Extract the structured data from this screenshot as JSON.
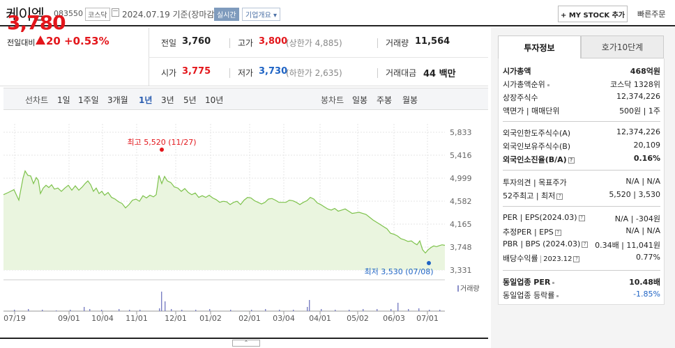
{
  "header": {
    "stock_name": "케이엠",
    "stock_code": "083550",
    "market": "코스닥",
    "date": "2024.07.19 기준(장마감)",
    "realtime": "실시간",
    "overview": "기업개요",
    "my_stock": "+ MY STOCK 추가",
    "quick_order": "빠른주문"
  },
  "price": {
    "current": "3,780",
    "vs_label": "전일대비",
    "change": "20",
    "change_pct": "+0.53%",
    "prev_label": "전일",
    "prev": "3,760",
    "high_label": "고가",
    "high": "3,800",
    "upper_limit": "(상한가 4,885)",
    "volume_label": "거래량",
    "volume": "11,564",
    "open_label": "시가",
    "open": "3,775",
    "low_label": "저가",
    "low": "3,730",
    "lower_limit": "(하한가 2,635)",
    "value_label": "거래대금",
    "value": "44 백만"
  },
  "periods": {
    "line_label": "선차트",
    "items": [
      "1일",
      "1주일",
      "3개월",
      "1년",
      "3년",
      "5년",
      "10년"
    ],
    "active": "1년",
    "candle_label": "봉차트",
    "candle_items": [
      "일봉",
      "주봉",
      "월봉"
    ]
  },
  "right_panel": {
    "tab_invest": "투자정보",
    "tab_hoga": "호가10단계",
    "rows": {
      "mktcap": [
        "시가총액",
        "468억원"
      ],
      "mktcap_rank": [
        "시가총액순위",
        "코스닥 1328위"
      ],
      "shares": [
        "상장주식수",
        "12,374,226"
      ],
      "face": [
        "액면가 | 매매단위",
        "500원 | 1주"
      ],
      "foreign_limit": [
        "외국인한도주식수(A)",
        "12,374,226"
      ],
      "foreign_hold": [
        "외국인보유주식수(B)",
        "20,109"
      ],
      "foreign_ratio": [
        "외국인소진율(B/A)",
        "0.16%"
      ],
      "opinion": [
        "투자의견 | 목표주가",
        "N/A | N/A"
      ],
      "week52": [
        "52주최고 | 최저",
        "5,520 | 3,530"
      ],
      "per_eps": [
        "PER | EPS(2024.03)",
        "N/A | -304원"
      ],
      "est_per": [
        "추정PER | EPS",
        "N/A | N/A"
      ],
      "pbr_bps": [
        "PBR | BPS (2024.03)",
        "0.34배 | 11,041원"
      ],
      "dividend_label": "배당수익률",
      "dividend_date": "2023.12",
      "dividend": "0.77%",
      "industry_per": [
        "동일업종 PER",
        "10.48배"
      ],
      "industry_rate": [
        "동일업종 등락률",
        "-1.85%"
      ]
    }
  },
  "chart_data": {
    "type": "area",
    "y_ticks": [
      "5,833",
      "5,416",
      "4,999",
      "4,582",
      "4,165",
      "3,748",
      "3,331"
    ],
    "x_ticks": [
      "07/19",
      "09/01",
      "10/04",
      "11/01",
      "12/01",
      "01/02",
      "02/01",
      "03/04",
      "04/01",
      "05/02",
      "06/03",
      "07/01"
    ],
    "ylim": [
      3331,
      5833
    ],
    "high_label": "최고 5,520 (11/27)",
    "low_label": "최저 3,530 (07/08)",
    "volume_label": "거래량",
    "series_color": "#7dc24b",
    "fill_color": "#eaf5df"
  }
}
